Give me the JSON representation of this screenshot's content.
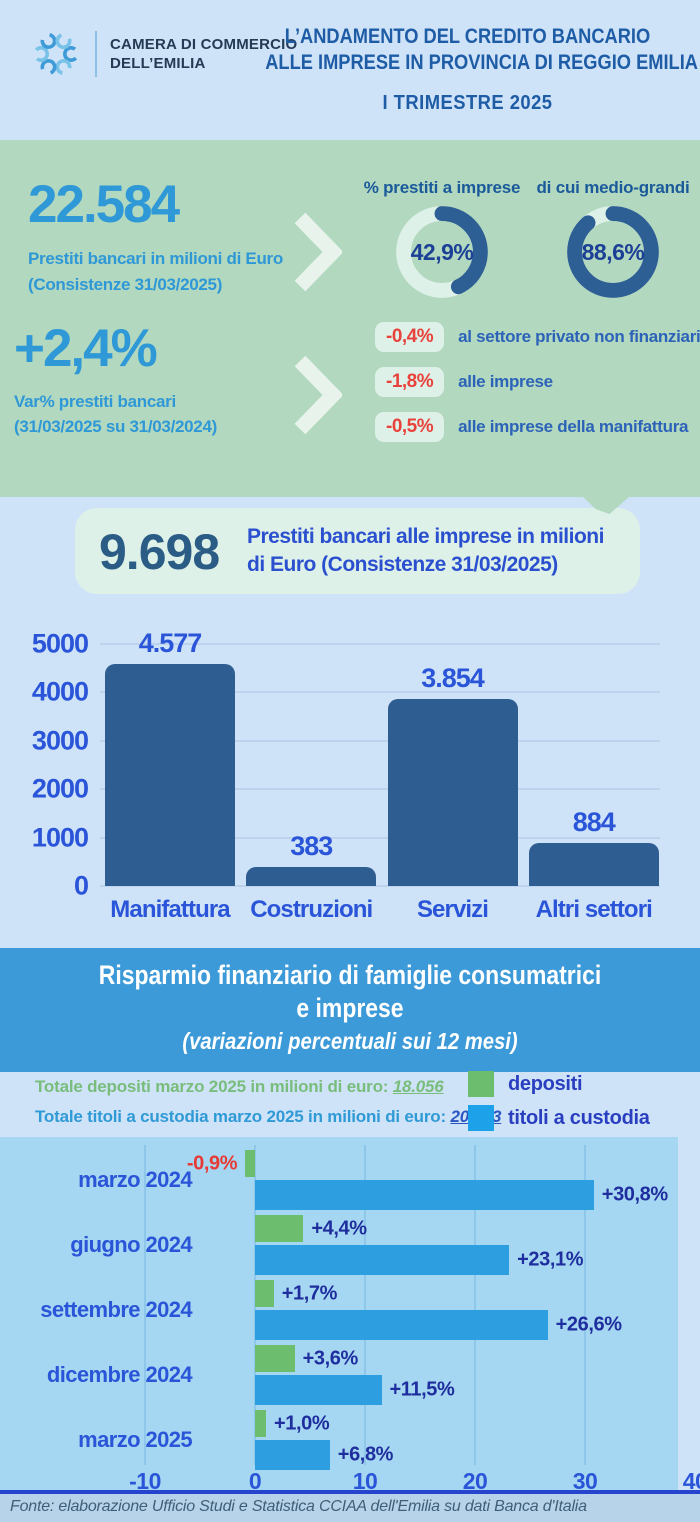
{
  "header": {
    "logo_name_line1": "CAMERA DI COMMERCIO",
    "logo_name_line2": "DELL’EMILIA",
    "title_line1": "L’ANDAMENTO DEL CREDITO BANCARIO",
    "title_line2": "ALLE IMPRESE IN PROVINCIA DI REGGIO EMILIA",
    "period": "I TRIMESTRE 2025"
  },
  "credit": {
    "total_value": "22.584",
    "total_caption_line1": "Prestiti bancari in milioni di Euro",
    "total_caption_line2": "(Consistenze 31/03/2025)",
    "var_value": "+2,4%",
    "var_caption_line1": "Var% prestiti bancari",
    "var_caption_line2": "(31/03/2025 su 31/03/2024)",
    "donuts": [
      {
        "label": "% prestiti a imprese",
        "value_text": "42,9%",
        "percent": 42.9
      },
      {
        "label": "di cui medio-grandi",
        "value_text": "88,6%",
        "percent": 88.6
      }
    ],
    "variations": [
      {
        "value": "-0,4%",
        "label": "al settore privato non finanziario"
      },
      {
        "value": "-1,8%",
        "label": "alle imprese"
      },
      {
        "value": "-0,5%",
        "label": "alle imprese della manifattura"
      }
    ]
  },
  "enterprise_loans": {
    "value": "9.698",
    "caption_line1": "Prestiti bancari alle imprese in milioni",
    "caption_line2": "di Euro (Consistenze 31/03/2025)"
  },
  "savings": {
    "title_line1": "Risparmio finanziario di famiglie consumatrici",
    "title_line2": "e imprese",
    "subtitle": "(variazioni percentuali sui 12 mesi)",
    "deposits_label": "Totale depositi marzo 2025 in milioni di euro: ",
    "deposits_value": "18.056",
    "securities_label": "Totale titoli a custodia marzo 2025 in milioni di euro: ",
    "securities_value": "20.873",
    "legend": [
      {
        "label": "depositi",
        "color": "#6cbd6d"
      },
      {
        "label": "titoli a custodia",
        "color": "#1da2ea"
      }
    ]
  },
  "footer": {
    "source": "Fonte: elaborazione Ufficio Studi e Statistica CCIAA dell'Emilia su dati Banca d'Italia"
  },
  "colors": {
    "page_blue": "#cfe3f8",
    "green_section": "#b2d8bf",
    "mint": "#def1e8",
    "sky_blue_text": "#2f98d6",
    "navy_title": "#1e5ca6",
    "royal_chart_text": "#2a55d8",
    "donut_arc": "#2d5e94",
    "red_negative": "#e8423c",
    "banner_blue": "#3d9ad8",
    "panel_blue": "#a6d7f2",
    "axis_blue": "#2744cf"
  },
  "chart_data": [
    {
      "type": "bar",
      "title": "Prestiti bancari alle imprese in milioni di Euro (Consistenze 31/03/2025)",
      "categories": [
        "Manifattura",
        "Costruzioni",
        "Servizi",
        "Altri settori"
      ],
      "values": [
        4577,
        383,
        3854,
        884
      ],
      "value_labels": [
        "4.577",
        "383",
        "3.854",
        "884"
      ],
      "ylim": [
        0,
        5000
      ],
      "yticks": [
        0,
        1000,
        2000,
        3000,
        4000,
        5000
      ],
      "grid": true,
      "legend_position": "none",
      "bar_color": "#2e5d92"
    },
    {
      "type": "bar",
      "orientation": "horizontal",
      "title": "Risparmio finanziario di famiglie consumatrici e imprese",
      "subtitle": "(variazioni percentuali sui 12 mesi)",
      "categories": [
        "marzo 2024",
        "giugno 2024",
        "settembre 2024",
        "dicembre 2024",
        "marzo 2025"
      ],
      "series": [
        {
          "name": "depositi",
          "color": "#6cbd6d",
          "values": [
            -0.9,
            4.4,
            1.7,
            3.6,
            1.0
          ],
          "value_labels": [
            "-0,9%",
            "+4,4%",
            "+1,7%",
            "+3,6%",
            "+1,0%"
          ]
        },
        {
          "name": "titoli a custodia",
          "color": "#2d9ee0",
          "values": [
            30.8,
            23.1,
            26.6,
            11.5,
            6.8
          ],
          "value_labels": [
            "+30,8%",
            "+23,1%",
            "+26,6%",
            "+11,5%",
            "+6,8%"
          ]
        }
      ],
      "xlim": [
        -10,
        40
      ],
      "xticks": [
        -10,
        0,
        10,
        20,
        30,
        40
      ],
      "grid": true,
      "legend_position": "top-right"
    }
  ]
}
